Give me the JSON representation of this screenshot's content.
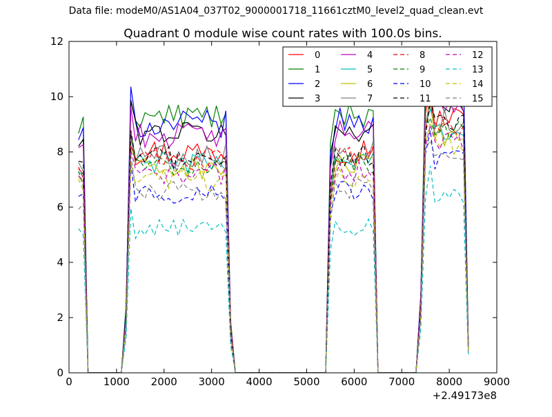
{
  "suptitle": "Data file: modeM0/AS1A04_037T02_9000001718_11661cztM0_level2_quad_clean.evt",
  "chart_data": {
    "type": "line",
    "title": "Quadrant 0 module wise count rates with 100.0s bins.",
    "xlabel": "",
    "ylabel": "",
    "x_offset_label": "+2.49173e8",
    "xlim": [
      0,
      9000
    ],
    "ylim": [
      0,
      12
    ],
    "xticks": [
      0,
      1000,
      2000,
      3000,
      4000,
      5000,
      6000,
      7000,
      8000,
      9000
    ],
    "yticks": [
      0,
      2,
      4,
      6,
      8,
      10,
      12
    ],
    "grid": false,
    "legend_position": "top-right",
    "x": [
      200,
      300,
      400,
      500,
      600,
      700,
      800,
      900,
      1000,
      1100,
      1200,
      1300,
      1400,
      1500,
      1600,
      1700,
      1800,
      1900,
      2000,
      2100,
      2200,
      2300,
      2400,
      2500,
      2600,
      2700,
      2800,
      2900,
      3000,
      3100,
      3200,
      3300,
      3400,
      3500,
      3600,
      3700,
      3800,
      3900,
      4000,
      4100,
      4200,
      4300,
      4400,
      4500,
      4600,
      4700,
      4800,
      4900,
      5000,
      5100,
      5200,
      5300,
      5400,
      5500,
      5600,
      5700,
      5800,
      5900,
      6000,
      6100,
      6200,
      6300,
      6400,
      6500,
      6600,
      6700,
      6800,
      6900,
      7000,
      7100,
      7200,
      7300,
      7400,
      7500,
      7600,
      7700,
      7800,
      7900,
      8000,
      8100,
      8200,
      8300,
      8400
    ],
    "on_segments": [
      [
        4,
        6,
        2000,
        2120
      ],
      [
        4,
        6,
        2150,
        2380
      ],
      [
        4,
        6,
        2400,
        2640
      ]
    ],
    "series": [
      {
        "name": "0",
        "color": "#ff0000",
        "dash": "solid",
        "level": 8.0,
        "jitter": 0.5
      },
      {
        "name": "1",
        "color": "#008000",
        "dash": "solid",
        "level": 9.3,
        "jitter": 0.5
      },
      {
        "name": "2",
        "color": "#0000ff",
        "dash": "solid",
        "level": 9.0,
        "jitter": 0.5
      },
      {
        "name": "3",
        "color": "#000000",
        "dash": "solid",
        "level": 8.7,
        "jitter": 0.45
      },
      {
        "name": "4",
        "color": "#bf00bf",
        "dash": "solid",
        "level": 8.6,
        "jitter": 0.45
      },
      {
        "name": "5",
        "color": "#00bfbf",
        "dash": "solid",
        "level": 7.6,
        "jitter": 0.4
      },
      {
        "name": "6",
        "color": "#bfbf00",
        "dash": "solid",
        "level": 7.4,
        "jitter": 0.4
      },
      {
        "name": "7",
        "color": "#808080",
        "dash": "solid",
        "level": 7.9,
        "jitter": 0.45
      },
      {
        "name": "8",
        "color": "#ff0000",
        "dash": "dashed",
        "level": 7.7,
        "jitter": 0.4
      },
      {
        "name": "9",
        "color": "#008000",
        "dash": "dashed",
        "level": 7.5,
        "jitter": 0.4
      },
      {
        "name": "10",
        "color": "#0000ff",
        "dash": "dashed",
        "level": 6.5,
        "jitter": 0.4
      },
      {
        "name": "11",
        "color": "#000000",
        "dash": "dashed",
        "level": 7.8,
        "jitter": 0.4
      },
      {
        "name": "12",
        "color": "#bf00bf",
        "dash": "dashed",
        "level": 7.2,
        "jitter": 0.4
      },
      {
        "name": "13",
        "color": "#00bfbf",
        "dash": "dashed",
        "level": 5.2,
        "jitter": 0.35
      },
      {
        "name": "14",
        "color": "#bfbf00",
        "dash": "dashed",
        "level": 7.0,
        "jitter": 0.4
      },
      {
        "name": "15",
        "color": "#808080",
        "dash": "dashed",
        "level": 6.6,
        "jitter": 0.4
      }
    ]
  }
}
